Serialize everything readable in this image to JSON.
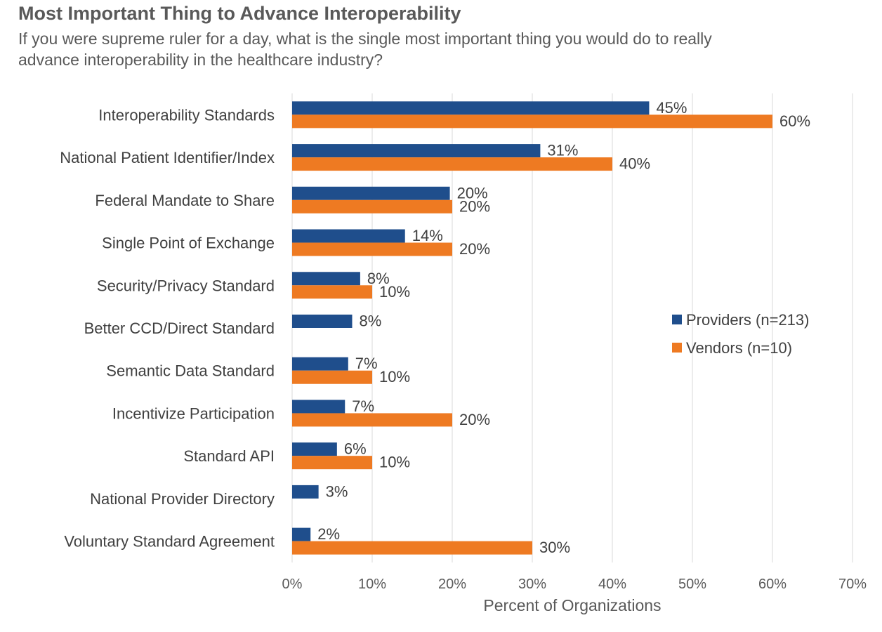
{
  "chart_data": {
    "type": "bar",
    "orientation": "horizontal",
    "title": "Most Important Thing to Advance Interoperability",
    "subtitle": "If you were supreme ruler for a day, what is the single most important thing you would do to really advance interoperability in the healthcare industry?",
    "xlabel": "Percent of Organizations",
    "xlim": [
      0,
      70
    ],
    "xticks": [
      "0%",
      "10%",
      "20%",
      "30%",
      "40%",
      "50%",
      "60%",
      "70%"
    ],
    "grid": true,
    "legend_position": "right",
    "categories": [
      "Interoperability Standards",
      "National Patient Identifier/Index",
      "Federal Mandate to Share",
      "Single Point of Exchange",
      "Security/Privacy Standard",
      "Better CCD/Direct Standard",
      "Semantic Data Standard",
      "Incentivize Participation",
      "Standard API",
      "National Provider Directory",
      "Voluntary Standard Agreement"
    ],
    "series": [
      {
        "name": "Providers (n=213)",
        "color": "#1F4E8C",
        "values": [
          45,
          31,
          20,
          14,
          8,
          8,
          7,
          7,
          6,
          3,
          2
        ],
        "labels": [
          "45%",
          "31%",
          "20%",
          "14%",
          "8%",
          "8%",
          "7%",
          "7%",
          "6%",
          "3%",
          "2%"
        ],
        "bar_values": [
          44.6,
          31,
          19.7,
          14.1,
          8.5,
          7.5,
          7.0,
          6.6,
          5.6,
          3.3,
          2.3
        ]
      },
      {
        "name": "Vendors (n=10)",
        "color": "#EE7A22",
        "values": [
          60,
          40,
          20,
          20,
          10,
          null,
          10,
          20,
          10,
          null,
          30
        ],
        "labels": [
          "60%",
          "40%",
          "20%",
          "20%",
          "10%",
          "",
          "10%",
          "20%",
          "10%",
          "",
          "30%"
        ],
        "bar_values": [
          60,
          40,
          20,
          20,
          10,
          null,
          10,
          20,
          10,
          null,
          30
        ]
      }
    ]
  }
}
